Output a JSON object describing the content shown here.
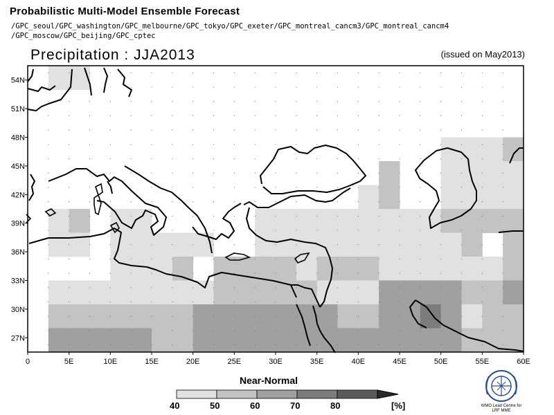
{
  "header": {
    "title": "Probabilistic Multi-Model Ensemble Forecast",
    "models_line1": "/GPC_seoul/GPC_washington/GPC_melbourne/GPC_tokyo/GPC_exeter/GPC_montreal_cancm3/GPC_montreal_cancm4",
    "models_line2": "/GPC_moscow/GPC_beijing/GPC_cptec",
    "subtitle": "Precipitation : JJA2013",
    "issued": "(issued on May2013)"
  },
  "map": {
    "lat_labels": [
      "54N",
      "51N",
      "48N",
      "45N",
      "42N",
      "39N",
      "36N",
      "33N",
      "30N",
      "27N"
    ],
    "lon_labels": [
      "0",
      "5E",
      "10E",
      "15E",
      "20E",
      "25E",
      "30E",
      "35E",
      "40E",
      "45E",
      "50E",
      "55E",
      "60E"
    ],
    "lat_values": [
      54,
      51,
      48,
      45,
      42,
      39,
      36,
      33,
      30,
      27
    ],
    "lon_values": [
      0,
      5,
      10,
      15,
      20,
      25,
      30,
      35,
      40,
      45,
      50,
      55,
      60
    ],
    "extent": {
      "lon_min": 0,
      "lon_max": 60,
      "lat_min": 25.5,
      "lat_max": 55.5
    },
    "cell_size_deg": 2.5,
    "category_shades": {
      "1": "#e1e1e1",
      "2": "#c3c3c3",
      "3": "#a0a0a0",
      "4": "#7c7c7c",
      "5": "#5a5a5a"
    }
  },
  "legend": {
    "title": "Near-Normal",
    "labels": [
      "40",
      "50",
      "60",
      "70",
      "80"
    ],
    "unit": "[%]",
    "colors": [
      "#e1e1e1",
      "#c3c3c3",
      "#a0a0a0",
      "#7c7c7c",
      "#5a5a5a",
      "#2a2a2a"
    ]
  },
  "logo": {
    "text_line1": "WMO Lead Centre for",
    "text_line2": "LRF MME"
  }
}
